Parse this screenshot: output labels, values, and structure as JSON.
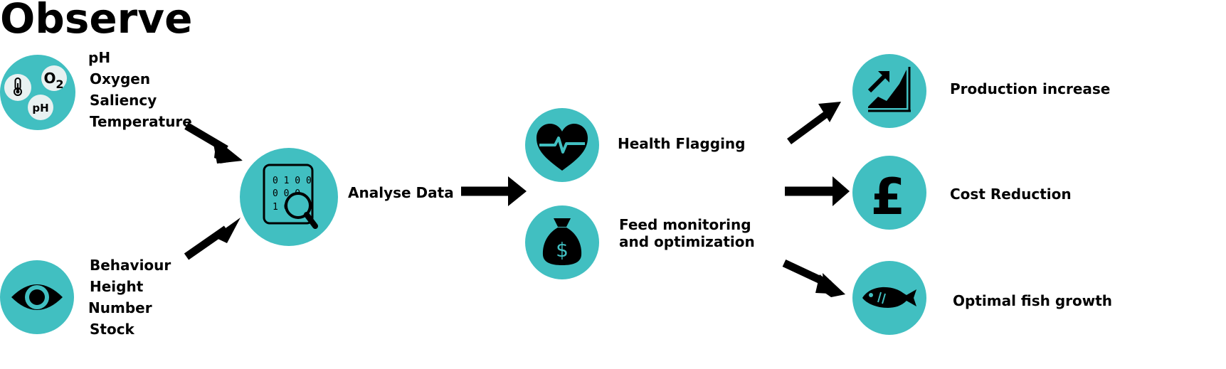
{
  "title": "Observe",
  "water_params": [
    "pH",
    "Oxygen",
    "Saliency",
    "Temperature"
  ],
  "water_icon": {
    "o2_text": "O",
    "o2_sub": "2",
    "ph_text": "pH"
  },
  "behaviour_params": [
    "Behaviour",
    "Height",
    "Number",
    "Stock"
  ],
  "analyse_label": "Analyse Data",
  "analyse_icon_digits": [
    "0 1 0 0",
    "0 0 0",
    "1 0"
  ],
  "health_label": "Health Flagging",
  "feed_label_line1": "Feed monitoring",
  "feed_label_line2": "and optimization",
  "feed_icon_symbol": "$",
  "production_label": "Production increase",
  "cost_label": "Cost Reduction",
  "cost_icon_symbol": "£",
  "growth_label": "Optimal fish growth",
  "colors": {
    "accent": "#41bfc1",
    "foreground": "#000000",
    "bubble": "#e8f1f1"
  }
}
